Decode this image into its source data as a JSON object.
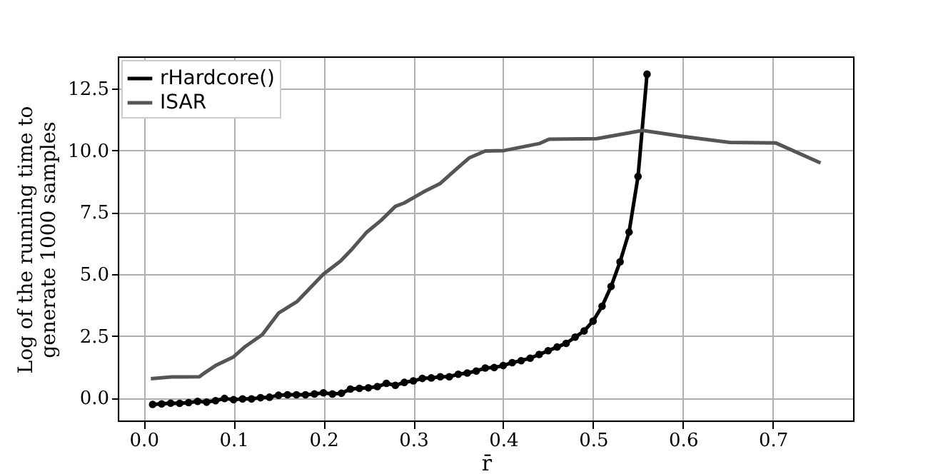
{
  "chart_data": {
    "type": "line",
    "xlabel": "r̄",
    "ylabel": "Log of the running time to\ngenerate 1000 samples",
    "xlim": [
      -0.028,
      0.79
    ],
    "ylim": [
      -0.95,
      13.78
    ],
    "xticks": [
      {
        "value": 0,
        "label": "0.0"
      },
      {
        "value": 0.1,
        "label": "0.1"
      },
      {
        "value": 0.2,
        "label": "0.2"
      },
      {
        "value": 0.3,
        "label": "0.3"
      },
      {
        "value": 0.4,
        "label": "0.4"
      },
      {
        "value": 0.5,
        "label": "0.5"
      },
      {
        "value": 0.6,
        "label": "0.6"
      },
      {
        "value": 0.7,
        "label": "0.7"
      }
    ],
    "yticks": [
      {
        "value": 0,
        "label": "0.0"
      },
      2.5,
      {
        "value": 5,
        "label": "5.0"
      },
      7.5,
      {
        "value": 10,
        "label": "10.0"
      },
      12.5
    ],
    "grid": true,
    "legend": "top left",
    "line_style": "solid",
    "series": [
      {
        "name": "rHardcore()",
        "color": "#000000",
        "marker": "circle",
        "x": [
          0.01,
          0.02,
          0.03,
          0.04,
          0.05,
          0.06,
          0.07,
          0.08,
          0.09,
          0.1,
          0.11,
          0.12,
          0.13,
          0.14,
          0.15,
          0.16,
          0.17,
          0.18,
          0.19,
          0.2,
          0.21,
          0.22,
          0.23,
          0.24,
          0.25,
          0.26,
          0.27,
          0.28,
          0.29,
          0.3,
          0.31,
          0.32,
          0.33,
          0.34,
          0.35,
          0.36,
          0.37,
          0.38,
          0.39,
          0.4,
          0.41,
          0.42,
          0.43,
          0.44,
          0.45,
          0.46,
          0.47,
          0.48,
          0.49,
          0.5,
          0.51,
          0.52,
          0.53,
          0.54,
          0.55,
          0.56
        ],
        "values": [
          -0.27,
          -0.25,
          -0.22,
          -0.23,
          -0.2,
          -0.15,
          -0.18,
          -0.12,
          -0.03,
          -0.08,
          -0.05,
          -0.05,
          0.0,
          0.02,
          0.1,
          0.12,
          0.12,
          0.12,
          0.15,
          0.2,
          0.15,
          0.18,
          0.35,
          0.38,
          0.4,
          0.45,
          0.58,
          0.5,
          0.62,
          0.68,
          0.78,
          0.8,
          0.85,
          0.85,
          0.95,
          1.0,
          1.08,
          1.2,
          1.22,
          1.3,
          1.42,
          1.5,
          1.6,
          1.75,
          1.9,
          2.05,
          2.2,
          2.45,
          2.7,
          3.1,
          3.7,
          4.5,
          5.5,
          6.7,
          8.95,
          13.09
        ]
      },
      {
        "name": "ISAR",
        "color": "#555555",
        "marker": "none",
        "x": [
          0.008,
          0.031,
          0.062,
          0.068,
          0.08,
          0.1,
          0.113,
          0.132,
          0.15,
          0.171,
          0.2,
          0.219,
          0.232,
          0.248,
          0.264,
          0.28,
          0.29,
          0.311,
          0.33,
          0.346,
          0.362,
          0.38,
          0.401,
          0.441,
          0.451,
          0.504,
          0.555,
          0.602,
          0.652,
          0.703,
          0.753
        ],
        "values": [
          0.77,
          0.84,
          0.85,
          1.01,
          1.3,
          1.65,
          2.07,
          2.55,
          3.42,
          3.9,
          5.0,
          5.53,
          6.02,
          6.69,
          7.17,
          7.74,
          7.88,
          8.32,
          8.67,
          9.19,
          9.7,
          9.98,
          10.0,
          10.29,
          10.46,
          10.48,
          10.81,
          10.56,
          10.33,
          10.31,
          9.5
        ]
      }
    ]
  }
}
